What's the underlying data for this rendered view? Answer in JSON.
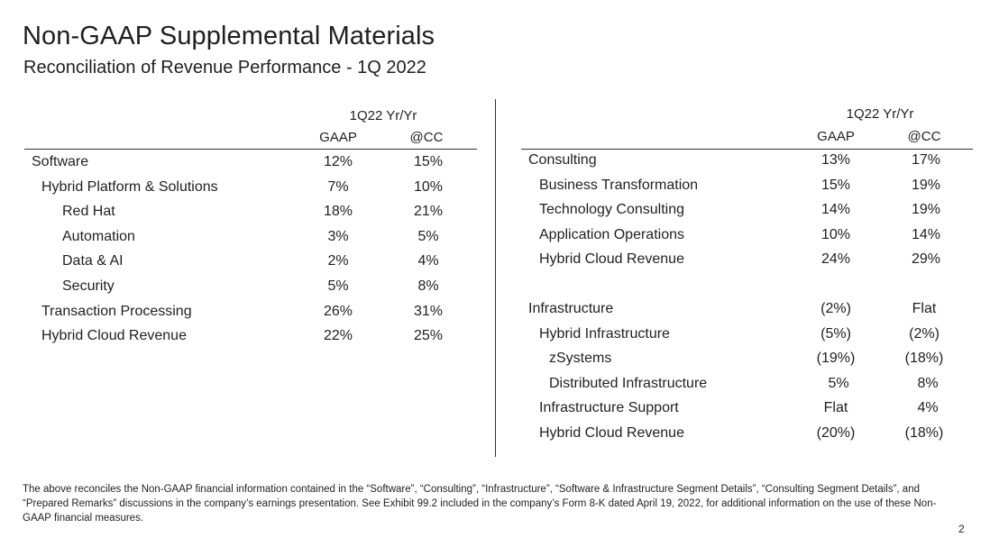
{
  "header": {
    "title": "Non-GAAP Supplemental Materials",
    "subtitle": "Reconciliation of Revenue Performance - 1Q 2022"
  },
  "left_table": {
    "period": "1Q22 Yr/Yr",
    "col_gaap": "GAAP",
    "col_cc": "@CC",
    "rows": [
      {
        "label": "Software",
        "gaap": "12%",
        "cc": "15%"
      },
      {
        "label": "Hybrid Platform & Solutions",
        "gaap": "7%",
        "cc": "10%"
      },
      {
        "label": "Red Hat",
        "gaap": "18%",
        "cc": "21%"
      },
      {
        "label": "Automation",
        "gaap": "3%",
        "cc": "5%"
      },
      {
        "label": "Data & AI",
        "gaap": "2%",
        "cc": "4%"
      },
      {
        "label": "Security",
        "gaap": "5%",
        "cc": "8%"
      },
      {
        "label": "Transaction Processing",
        "gaap": "26%",
        "cc": "31%"
      },
      {
        "label": "Hybrid Cloud Revenue",
        "gaap": "22%",
        "cc": "25%"
      }
    ]
  },
  "right_table": {
    "period": "1Q22 Yr/Yr",
    "col_gaap": "GAAP",
    "col_cc": "@CC",
    "rows": [
      {
        "label": "Consulting",
        "gaap": "13%",
        "cc": "17%"
      },
      {
        "label": "Business Transformation",
        "gaap": "15%",
        "cc": "19%"
      },
      {
        "label": "Technology Consulting",
        "gaap": "14%",
        "cc": "19%"
      },
      {
        "label": "Application Operations",
        "gaap": "10%",
        "cc": "14%"
      },
      {
        "label": "Hybrid Cloud Revenue",
        "gaap": "24%",
        "cc": "29%"
      },
      {
        "label": "Infrastructure",
        "gaap": "(2%)",
        "cc": "Flat"
      },
      {
        "label": "Hybrid Infrastructure",
        "gaap": "(5%)",
        "cc": "(2%)"
      },
      {
        "label": "zSystems",
        "gaap": "(19%)",
        "cc": "(18%)"
      },
      {
        "label": "Distributed Infrastructure",
        "gaap": "5%",
        "cc": "8%"
      },
      {
        "label": "Infrastructure Support",
        "gaap": "Flat",
        "cc": "4%"
      },
      {
        "label": "Hybrid Cloud Revenue",
        "gaap": "(20%)",
        "cc": "(18%)"
      }
    ]
  },
  "footnote": "The above reconciles the Non-GAAP financial information contained in the “Software”, “Consulting”, “Infrastructure”, “Software & Infrastructure Segment Details”, “Consulting Segment Details”, and “Prepared Remarks” discussions in the company’s earnings presentation. See Exhibit 99.2 included in the company’s Form 8-K dated April 19, 2022, for additional information on the use of these Non-GAAP financial measures.",
  "page_number": "2"
}
